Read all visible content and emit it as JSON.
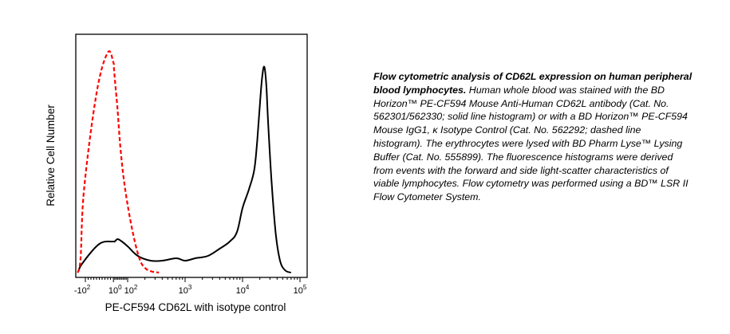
{
  "chart_data": {
    "type": "line",
    "xlabel": "PE-CF594 CD62L with isotype control",
    "ylabel": "Relative Cell Number",
    "xscale": "biexponential (log above ~10^2)",
    "x_ticks": [
      {
        "value": -100,
        "base": "-10",
        "exp": "2"
      },
      {
        "value": 1,
        "base": "10",
        "exp": "0"
      },
      {
        "value": 100,
        "base": "10",
        "exp": "2"
      },
      {
        "value": 1000,
        "base": "10",
        "exp": "3"
      },
      {
        "value": 10000,
        "base": "10",
        "exp": "4"
      },
      {
        "value": 100000,
        "base": "10",
        "exp": "5"
      }
    ],
    "grid": false,
    "series": [
      {
        "style": "solid",
        "color": "#000000",
        "note_values": "x in fluorescence units (biexponential), y as fraction of max count",
        "x": [
          -300,
          -150,
          -50,
          0,
          10,
          30,
          60,
          100,
          150,
          250,
          400,
          700,
          1000,
          1500,
          2500,
          4000,
          6000,
          8000,
          10000,
          13000,
          16000,
          18000,
          20000,
          22000,
          24000,
          26000,
          28000,
          32000,
          38000,
          45000,
          55000,
          70000
        ],
        "y": [
          0.0,
          0.04,
          0.12,
          0.13,
          0.13,
          0.14,
          0.13,
          0.11,
          0.07,
          0.05,
          0.05,
          0.06,
          0.05,
          0.06,
          0.07,
          0.1,
          0.13,
          0.17,
          0.27,
          0.35,
          0.43,
          0.55,
          0.7,
          0.82,
          0.86,
          0.78,
          0.62,
          0.38,
          0.16,
          0.05,
          0.01,
          0.0
        ]
      },
      {
        "style": "dashed",
        "color": "#ff0000",
        "x": [
          -300,
          -200,
          -120,
          -60,
          -20,
          0,
          5,
          15,
          30,
          50,
          80,
          120,
          160,
          200,
          260,
          350
        ],
        "y": [
          0.0,
          0.06,
          0.35,
          0.75,
          0.92,
          0.88,
          0.85,
          0.78,
          0.68,
          0.52,
          0.36,
          0.18,
          0.06,
          0.02,
          0.005,
          0.0
        ]
      }
    ]
  },
  "caption": {
    "bold": "Flow cytometric analysis of CD62L expression on human peripheral blood lymphocytes.",
    "body": " Human whole blood was stained with the BD Horizon™ PE-CF594 Mouse Anti-Human CD62L antibody (Cat. No. 562301/562330; solid line histogram) or with a BD Horizon™ PE-CF594 Mouse IgG1, κ Isotype Control (Cat. No. 562292; dashed line histogram). The erythrocytes were lysed with BD Pharm Lyse™ Lysing Buffer (Cat. No. 555899). The fluorescence histograms were derived from events with the forward and side light-scatter characteristics of viable lymphocytes. Flow cytometry was performed using a BD™ LSR II Flow Cytometer System."
  }
}
